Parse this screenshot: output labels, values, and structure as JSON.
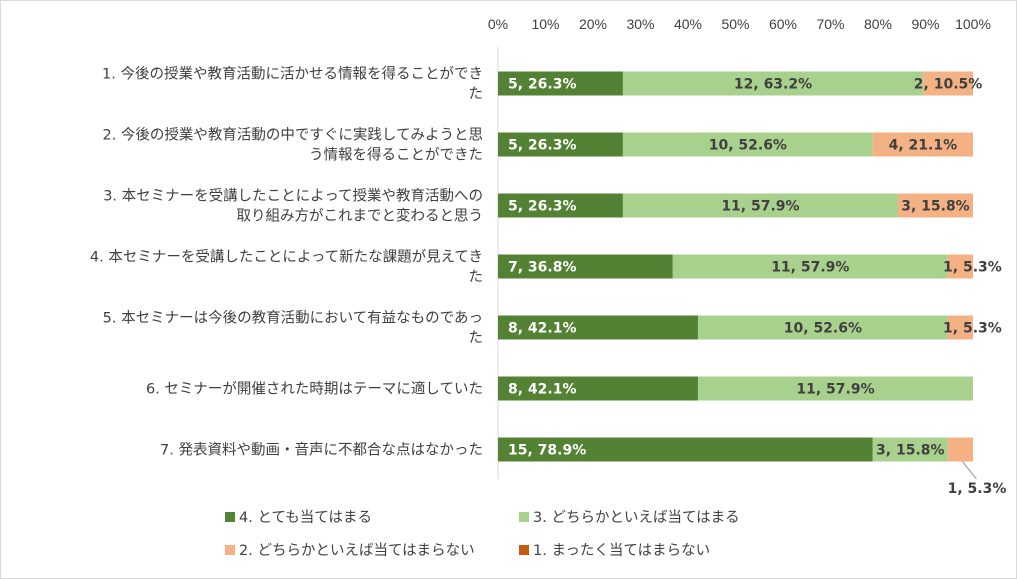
{
  "chart_data": {
    "type": "bar",
    "orientation": "horizontal",
    "stacked": "percent",
    "categories": [
      [
        "1. 今後の授業や教育活動に活かせる情報を得ることができ",
        "た"
      ],
      [
        "2. 今後の授業や教育活動の中ですぐに実践してみようと思",
        "う情報を得ることができた"
      ],
      [
        "3. 本セミナーを受講したことによって授業や教育活動への",
        "取り組み方がこれまでと変わると思う"
      ],
      [
        "4. 本セミナーを受講したことによって新たな課題が見えてき",
        "た"
      ],
      [
        "5. 本セミナーは今後の教育活動において有益なものであっ",
        "た"
      ],
      [
        "6. セミナーが開催された時期はテーマに適していた"
      ],
      [
        "7. 発表資料や動画・音声に不都合な点はなかった"
      ]
    ],
    "xlim": [
      0,
      100
    ],
    "xticks": [
      "0%",
      "10%",
      "20%",
      "30%",
      "40%",
      "50%",
      "60%",
      "70%",
      "80%",
      "90%",
      "100%"
    ],
    "series": [
      {
        "name": "4. とても当てはまる",
        "color": "#548235",
        "label_color": "#ffffff",
        "counts": [
          5,
          5,
          5,
          7,
          8,
          8,
          15
        ],
        "values": [
          26.3,
          26.3,
          26.3,
          36.8,
          42.1,
          42.1,
          78.9
        ],
        "labels": [
          "5, 26.3%",
          "5, 26.3%",
          "5, 26.3%",
          "7, 36.8%",
          "8, 42.1%",
          "8, 42.1%",
          "15, 78.9%"
        ]
      },
      {
        "name": "3. どちらかといえば当てはまる",
        "color": "#a9d18e",
        "label_color": "#404040",
        "counts": [
          12,
          10,
          11,
          11,
          10,
          11,
          3
        ],
        "values": [
          63.2,
          52.6,
          57.9,
          57.9,
          52.6,
          57.9,
          15.8
        ],
        "labels": [
          "12, 63.2%",
          "10, 52.6%",
          "11, 57.9%",
          "11, 57.9%",
          "10, 52.6%",
          "11, 57.9%",
          "3, 15.8%"
        ]
      },
      {
        "name": "2. どちらかといえば当てはまらない",
        "color": "#f4b183",
        "label_color": "#404040",
        "counts": [
          2,
          4,
          3,
          1,
          1,
          0,
          1
        ],
        "values": [
          10.5,
          21.1,
          15.8,
          5.3,
          5.3,
          0,
          5.3
        ],
        "labels": [
          "2, 10.5%",
          "4, 21.1%",
          "3, 15.8%",
          "1, 5.3%",
          "1, 5.3%",
          "",
          "1, 5.3%"
        ]
      },
      {
        "name": "1. まったく当てはまらない",
        "color": "#c55a11",
        "label_color": "#404040",
        "counts": [
          0,
          0,
          0,
          0,
          0,
          0,
          0
        ],
        "values": [
          0,
          0,
          0,
          0,
          0,
          0,
          0
        ],
        "labels": [
          "",
          "",
          "",
          "",
          "",
          "",
          ""
        ]
      }
    ],
    "legend_position": "bottom",
    "grid": false
  }
}
